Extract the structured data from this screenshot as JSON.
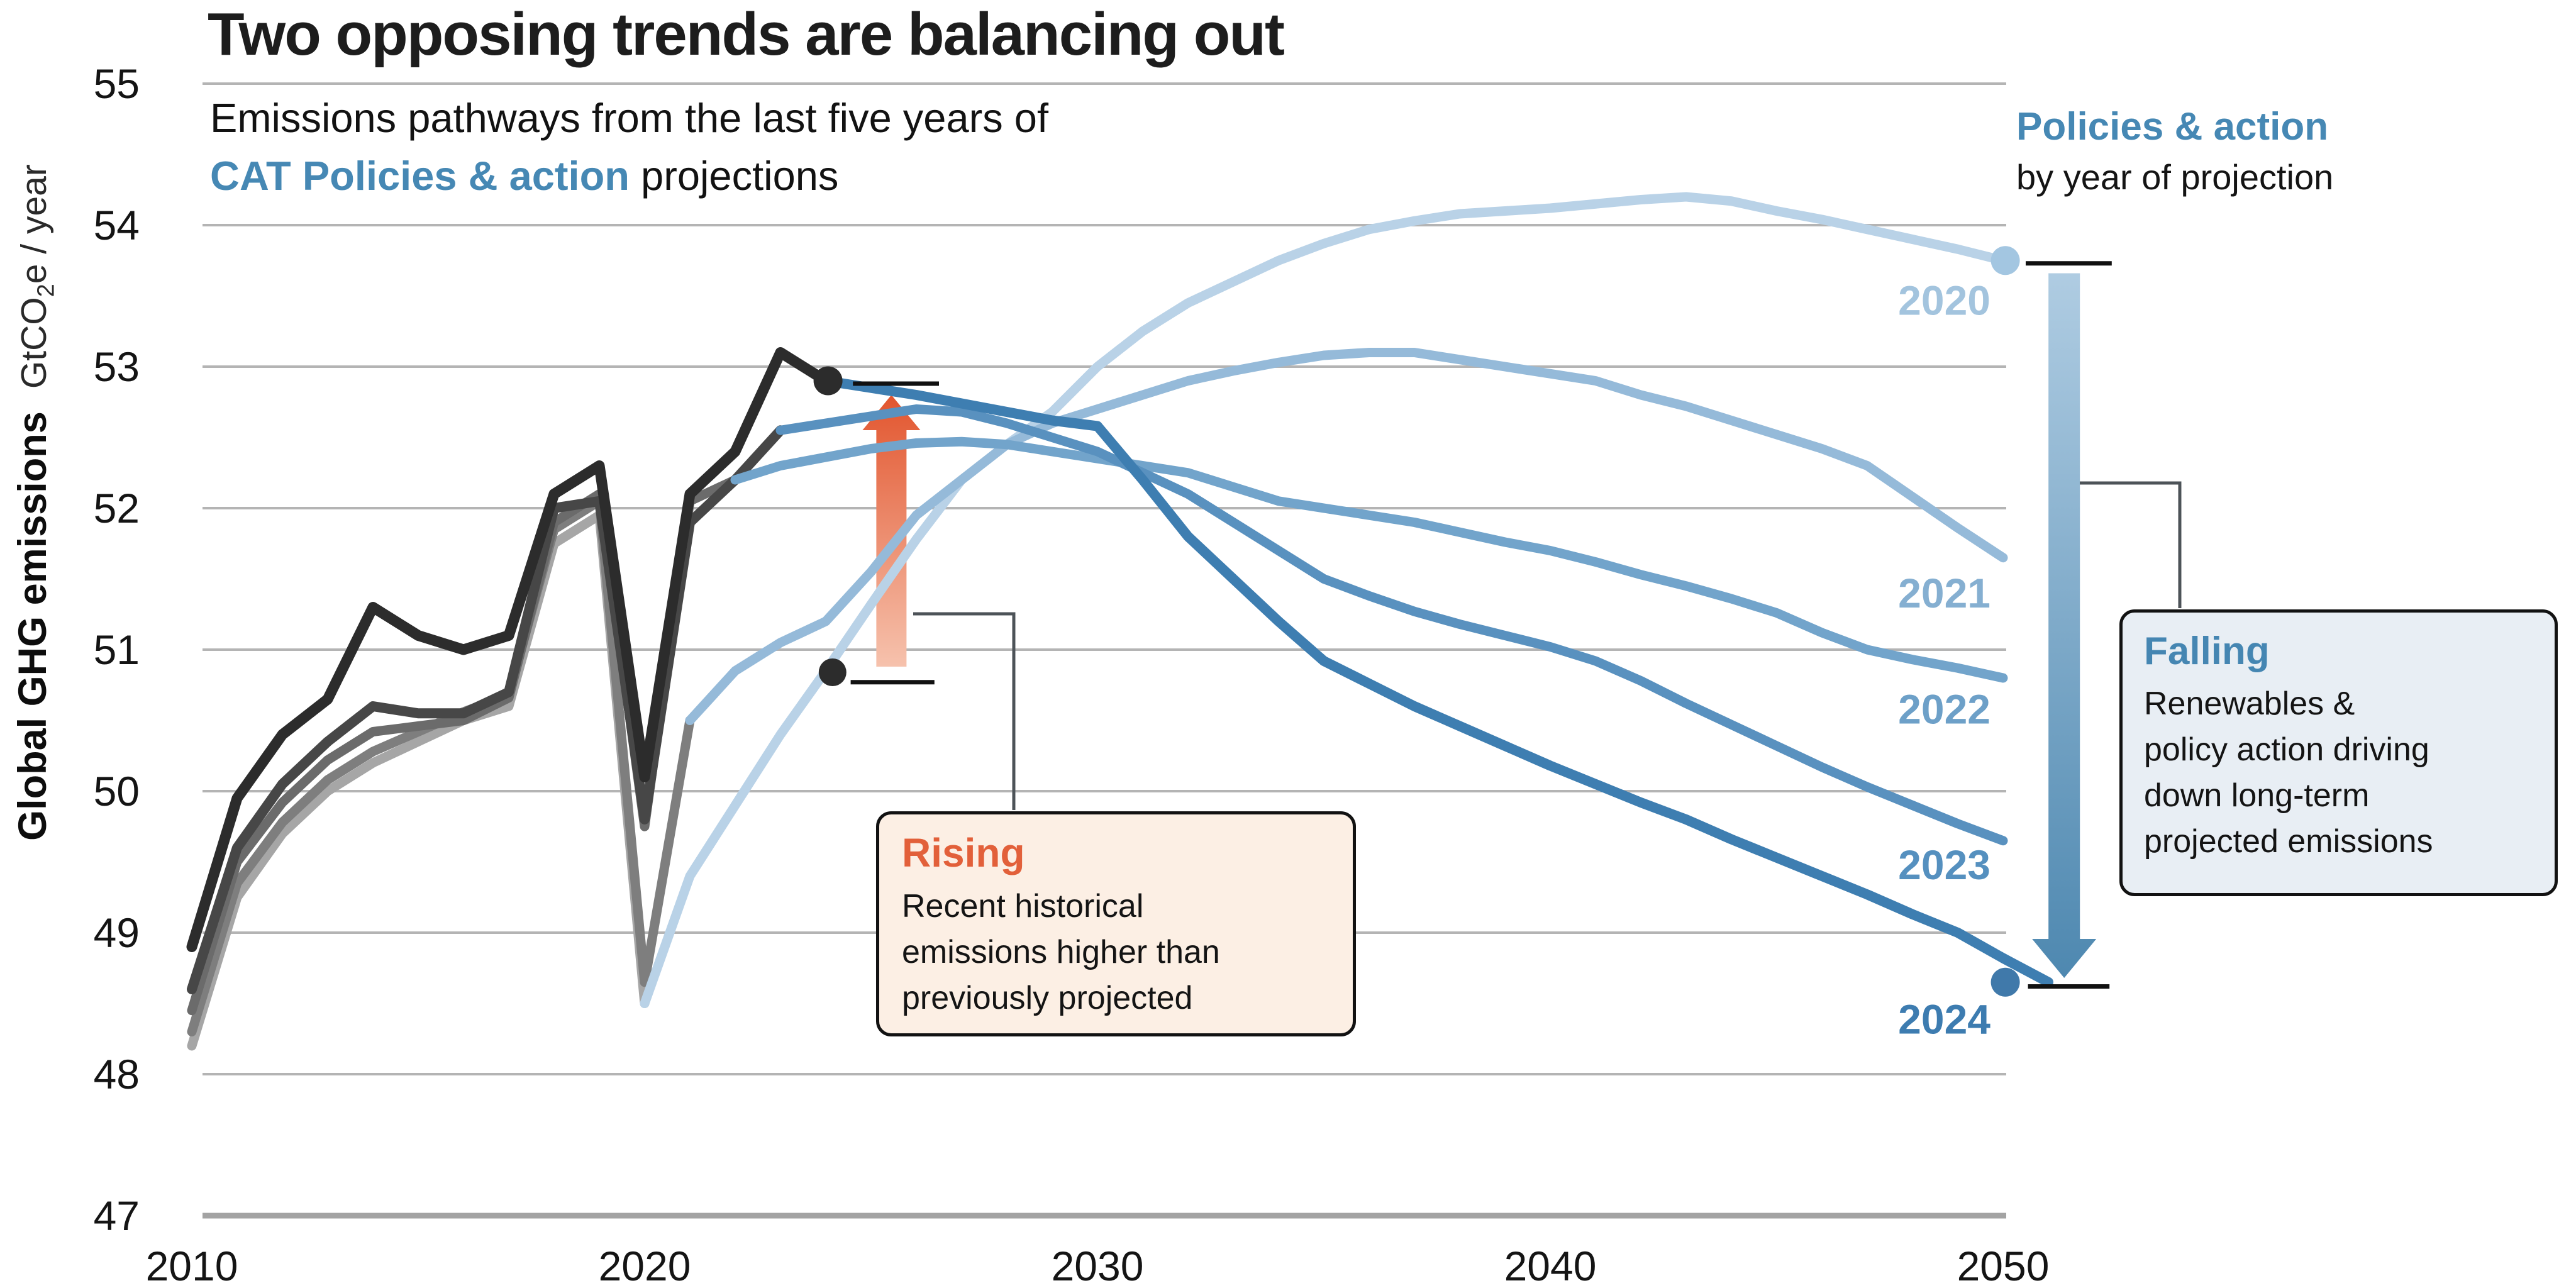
{
  "header": {
    "title": "Two opposing trends are balancing out",
    "subtitle_line1": "Emissions pathways from the last five years of",
    "subtitle_bold": "CAT Policies & action",
    "subtitle_rest": " projections"
  },
  "y_axis": {
    "title_bold": "Global GHG emissions",
    "unit_prefix": "GtCO",
    "unit_sub": "2",
    "unit_suffix": "e / year"
  },
  "legend": {
    "title": "Policies & action",
    "subtitle": "by year of projection"
  },
  "annotations": {
    "rising": {
      "title": "Rising",
      "title_color": "#e2603a",
      "lines": [
        "Recent historical",
        "emissions higher than",
        "previously projected"
      ]
    },
    "falling": {
      "title": "Falling",
      "title_color": "#4586b2",
      "lines": [
        "Renewables &",
        "policy action driving",
        "down long-term",
        "projected emissions"
      ]
    }
  },
  "chart_data": {
    "type": "line",
    "title": "Two opposing trends are balancing out",
    "xlabel": "",
    "ylabel": "Global GHG emissions GtCO2e / year",
    "xlim": [
      2010,
      2050
    ],
    "ylim": [
      47,
      55
    ],
    "x_ticks": [
      2010,
      2020,
      2030,
      2040,
      2050
    ],
    "y_ticks": [
      55,
      54,
      53,
      52,
      51,
      50,
      49,
      48,
      47
    ],
    "grid": "horizontal",
    "grid_color": "#b4b4b4",
    "axis_color": "#a3a3a3",
    "tick_label_color": "#141414",
    "series": [
      {
        "name": "historical-2020",
        "color": "#a6a6a6",
        "width": 15,
        "start_year": 2010,
        "values": [
          48.2,
          49.25,
          49.7,
          50.0,
          50.2,
          50.35,
          50.5,
          50.6,
          51.75,
          51.95,
          48.5
        ]
      },
      {
        "name": "historical-2021",
        "color": "#7e7e7e",
        "width": 15,
        "start_year": 2010,
        "values": [
          48.3,
          49.35,
          49.78,
          50.08,
          50.28,
          50.42,
          50.56,
          50.68,
          51.85,
          52.05,
          48.65,
          50.5
        ]
      },
      {
        "name": "historical-2022",
        "color": "#6b6b6b",
        "width": 15,
        "start_year": 2010,
        "values": [
          48.45,
          49.5,
          49.92,
          50.22,
          50.42,
          50.46,
          50.5,
          50.66,
          51.9,
          52.1,
          49.75,
          52.05,
          52.2
        ]
      },
      {
        "name": "historical-2023",
        "color": "#474747",
        "width": 16,
        "start_year": 2010,
        "values": [
          48.6,
          49.6,
          50.05,
          50.35,
          50.6,
          50.55,
          50.55,
          50.7,
          52.0,
          52.05,
          49.8,
          51.9,
          52.2,
          52.55
        ]
      },
      {
        "name": "historical-2024",
        "color": "#2c2c2c",
        "width": 17,
        "start_year": 2010,
        "values": [
          48.9,
          49.95,
          50.4,
          50.65,
          51.3,
          51.1,
          51.0,
          51.1,
          52.1,
          52.3,
          50.1,
          52.1,
          52.4,
          53.1,
          52.9
        ]
      },
      {
        "name": "projection-2020",
        "color": "#b9d2e7",
        "width": 15,
        "start_year": 2020,
        "values": [
          48.5,
          49.4,
          49.9,
          50.4,
          50.85,
          51.32,
          51.78,
          52.2,
          52.45,
          52.68,
          53.0,
          53.25,
          53.45,
          53.6,
          53.75,
          53.87,
          53.97,
          54.03,
          54.08,
          54.1,
          54.12,
          54.15,
          54.18,
          54.2,
          54.17,
          54.1,
          54.04,
          53.97,
          53.9,
          53.83,
          53.75
        ]
      },
      {
        "name": "projection-2021",
        "color": "#95bad9",
        "width": 15,
        "start_year": 2021,
        "values": [
          50.5,
          50.85,
          51.05,
          51.2,
          51.55,
          51.95,
          52.2,
          52.45,
          52.6,
          52.7,
          52.8,
          52.9,
          52.97,
          53.03,
          53.08,
          53.1,
          53.1,
          53.05,
          53.0,
          52.95,
          52.9,
          52.8,
          52.72,
          52.62,
          52.52,
          52.42,
          52.3,
          52.08,
          51.86,
          51.65
        ]
      },
      {
        "name": "projection-2022",
        "color": "#72a4cb",
        "width": 15,
        "start_year": 2022,
        "values": [
          52.2,
          52.3,
          52.36,
          52.42,
          52.46,
          52.47,
          52.45,
          52.4,
          52.35,
          52.3,
          52.25,
          52.15,
          52.05,
          52.0,
          51.95,
          51.9,
          51.83,
          51.76,
          51.7,
          51.62,
          51.53,
          51.45,
          51.36,
          51.26,
          51.12,
          51.0,
          50.93,
          50.87,
          50.8
        ]
      },
      {
        "name": "projection-2023",
        "color": "#5991bf",
        "width": 15,
        "start_year": 2023,
        "values": [
          52.55,
          52.6,
          52.65,
          52.7,
          52.68,
          52.6,
          52.5,
          52.4,
          52.25,
          52.1,
          51.9,
          51.7,
          51.5,
          51.38,
          51.27,
          51.18,
          51.1,
          51.02,
          50.92,
          50.78,
          50.62,
          50.47,
          50.32,
          50.17,
          50.03,
          49.9,
          49.77,
          49.65
        ]
      },
      {
        "name": "projection-2024",
        "color": "#3e7eb1",
        "width": 16,
        "start_year": 2024,
        "values": [
          52.9,
          52.85,
          52.8,
          52.74,
          52.68,
          52.62,
          52.58,
          52.2,
          51.8,
          51.5,
          51.2,
          50.92,
          50.76,
          50.6,
          50.46,
          50.32,
          50.18,
          50.05,
          49.92,
          49.8,
          49.66,
          49.53,
          49.4,
          49.27,
          49.13,
          49.0,
          48.82,
          48.65
        ]
      }
    ],
    "dots": [
      {
        "name": "historical-2024-end-dot",
        "year": 2024.05,
        "value": 52.9,
        "r": 23,
        "color": "#2c2c2c"
      },
      {
        "name": "rising-lower-dot",
        "year": 2024.15,
        "value": 50.84,
        "r": 22,
        "color": "#2c2c2c"
      },
      {
        "name": "projection-2020-end-dot",
        "year": 2050.05,
        "value": 53.75,
        "r": 23,
        "color": "#a3c6e1"
      },
      {
        "name": "projection-2024-end-dot",
        "year": 2050.05,
        "value": 48.65,
        "r": 23,
        "color": "#4079aa"
      }
    ],
    "reference_ticks": [
      {
        "name": "rising-top-tick",
        "x1_year": 2024.6,
        "x2_year": 2026.5,
        "value": 52.88
      },
      {
        "name": "rising-bottom-tick",
        "x1_year": 2024.55,
        "x2_year": 2026.4,
        "value": 50.77
      },
      {
        "name": "falling-top-tick",
        "x1_year": 2050.5,
        "x2_year": 2052.4,
        "value": 53.73
      },
      {
        "name": "falling-bottom-tick",
        "x1_year": 2050.55,
        "x2_year": 2052.35,
        "value": 48.62
      }
    ],
    "arrows": [
      {
        "name": "rising-arrow",
        "direction": "up",
        "x_year": 2025.45,
        "from_value": 50.88,
        "to_value": 52.8,
        "shaft_w": 48,
        "head_w": 92,
        "head_len": 56,
        "color_start": "#f6c2ad",
        "color_end": "#e2552e"
      },
      {
        "name": "falling-arrow",
        "direction": "down",
        "x_year": 2051.35,
        "from_value": 53.66,
        "to_value": 48.68,
        "shaft_w": 50,
        "head_w": 102,
        "head_len": 62,
        "color_start": "#afcce2",
        "color_end": "#4e88b0"
      }
    ],
    "line_labels": [
      {
        "text": "2020",
        "value": 53.47,
        "color": "#a3c4de"
      },
      {
        "text": "2021",
        "value": 51.4,
        "color": "#85afd1"
      },
      {
        "text": "2022",
        "value": 50.58,
        "color": "#6da0c8"
      },
      {
        "text": "2023",
        "value": 49.48,
        "color": "#5590bf"
      },
      {
        "text": "2024",
        "value": 48.39,
        "color": "#3d7cb0"
      }
    ]
  }
}
